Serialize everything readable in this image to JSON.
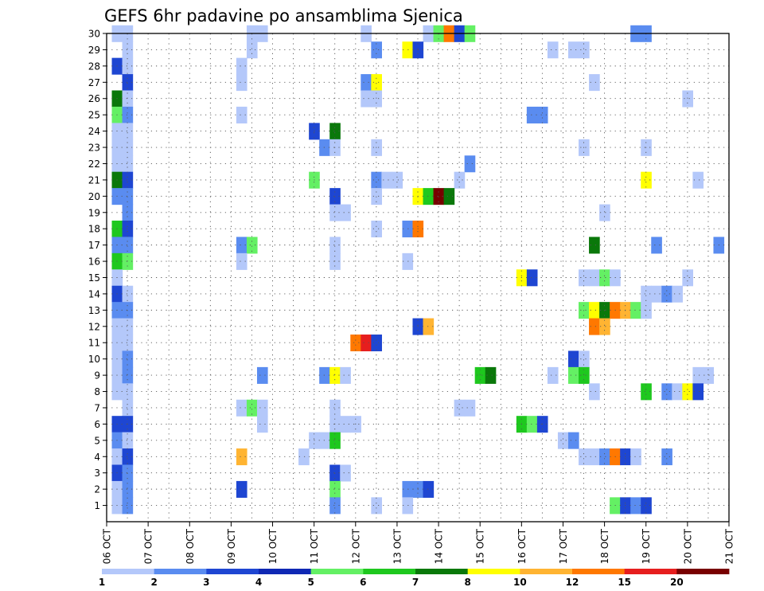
{
  "chart_data": {
    "type": "heatmap",
    "title": "GEFS 6hr padavine po ansamblima Sjenica",
    "xlabel": "",
    "ylabel": "",
    "x_ticks": [
      "06 OCT",
      "07 OCT",
      "08 OCT",
      "09 OCT",
      "10 OCT",
      "11 OCT",
      "12 OCT",
      "13 OCT",
      "14 OCT",
      "15 OCT",
      "16 OCT",
      "17 OCT",
      "18 OCT",
      "19 OCT",
      "20 OCT",
      "21 OCT"
    ],
    "x_range_days": [
      0,
      15
    ],
    "y_ticks": [
      "1",
      "2",
      "3",
      "4",
      "5",
      "6",
      "7",
      "8",
      "9",
      "10",
      "11",
      "12",
      "13",
      "14",
      "15",
      "16",
      "17",
      "18",
      "19",
      "20",
      "21",
      "22",
      "23",
      "24",
      "25",
      "26",
      "27",
      "28",
      "29",
      "30"
    ],
    "y_range": [
      0,
      30
    ],
    "grid": true,
    "colorbar": {
      "levels": [
        "1",
        "2",
        "3",
        "4",
        "5",
        "6",
        "7",
        "8",
        "10",
        "12",
        "15",
        "20"
      ],
      "colors": [
        "#b4c8fa",
        "#5a8cf0",
        "#1e46d2",
        "#0f28b4",
        "#64f064",
        "#1ec81e",
        "#0a780a",
        "#ffff00",
        "#ffb432",
        "#ff7800",
        "#e61e1e",
        "#780000"
      ]
    },
    "cells": [
      {
        "x": 0.25,
        "y": 30,
        "c": 0
      },
      {
        "x": 0.5,
        "y": 30,
        "c": 0
      },
      {
        "x": 3.5,
        "y": 30,
        "c": 0
      },
      {
        "x": 3.75,
        "y": 30,
        "c": 0
      },
      {
        "x": 6.25,
        "y": 30,
        "c": 0
      },
      {
        "x": 7.75,
        "y": 30,
        "c": 0
      },
      {
        "x": 8,
        "y": 30,
        "c": 4
      },
      {
        "x": 8.25,
        "y": 30,
        "c": 9
      },
      {
        "x": 8.5,
        "y": 30,
        "c": 2
      },
      {
        "x": 8.75,
        "y": 30,
        "c": 4
      },
      {
        "x": 12.75,
        "y": 30,
        "c": 1
      },
      {
        "x": 13,
        "y": 30,
        "c": 1
      },
      {
        "x": 0.5,
        "y": 29,
        "c": 0
      },
      {
        "x": 3.5,
        "y": 29,
        "c": 0
      },
      {
        "x": 6.5,
        "y": 29,
        "c": 1
      },
      {
        "x": 7.25,
        "y": 29,
        "c": 7
      },
      {
        "x": 7.5,
        "y": 29,
        "c": 2
      },
      {
        "x": 10.75,
        "y": 29,
        "c": 0
      },
      {
        "x": 11.25,
        "y": 29,
        "c": 0
      },
      {
        "x": 11.5,
        "y": 29,
        "c": 0
      },
      {
        "x": 0.25,
        "y": 28,
        "c": 2
      },
      {
        "x": 0.5,
        "y": 28,
        "c": 0
      },
      {
        "x": 3.25,
        "y": 28,
        "c": 0
      },
      {
        "x": 0.5,
        "y": 27,
        "c": 2
      },
      {
        "x": 3.25,
        "y": 27,
        "c": 0
      },
      {
        "x": 6.25,
        "y": 27,
        "c": 1
      },
      {
        "x": 6.5,
        "y": 27,
        "c": 7
      },
      {
        "x": 11.75,
        "y": 27,
        "c": 0
      },
      {
        "x": 0.25,
        "y": 26,
        "c": 6
      },
      {
        "x": 0.5,
        "y": 26,
        "c": 0
      },
      {
        "x": 6.25,
        "y": 26,
        "c": 0
      },
      {
        "x": 6.5,
        "y": 26,
        "c": 0
      },
      {
        "x": 14,
        "y": 26,
        "c": 0
      },
      {
        "x": 0.25,
        "y": 25,
        "c": 4
      },
      {
        "x": 0.5,
        "y": 25,
        "c": 1
      },
      {
        "x": 3.25,
        "y": 25,
        "c": 0
      },
      {
        "x": 10.25,
        "y": 25,
        "c": 1
      },
      {
        "x": 10.5,
        "y": 25,
        "c": 1
      },
      {
        "x": 0.25,
        "y": 24,
        "c": 0
      },
      {
        "x": 0.5,
        "y": 24,
        "c": 0
      },
      {
        "x": 5,
        "y": 24,
        "c": 2
      },
      {
        "x": 5.5,
        "y": 24,
        "c": 6
      },
      {
        "x": 0.25,
        "y": 23,
        "c": 0
      },
      {
        "x": 0.5,
        "y": 23,
        "c": 0
      },
      {
        "x": 5.25,
        "y": 23,
        "c": 1
      },
      {
        "x": 5.5,
        "y": 23,
        "c": 0
      },
      {
        "x": 6.5,
        "y": 23,
        "c": 0
      },
      {
        "x": 11.5,
        "y": 23,
        "c": 0
      },
      {
        "x": 13,
        "y": 23,
        "c": 0
      },
      {
        "x": 0.25,
        "y": 22,
        "c": 0
      },
      {
        "x": 0.5,
        "y": 22,
        "c": 0
      },
      {
        "x": 8.75,
        "y": 22,
        "c": 1
      },
      {
        "x": 0.25,
        "y": 21,
        "c": 6
      },
      {
        "x": 0.5,
        "y": 21,
        "c": 2
      },
      {
        "x": 5,
        "y": 21,
        "c": 4
      },
      {
        "x": 6.5,
        "y": 21,
        "c": 1
      },
      {
        "x": 6.75,
        "y": 21,
        "c": 0
      },
      {
        "x": 7,
        "y": 21,
        "c": 0
      },
      {
        "x": 8.5,
        "y": 21,
        "c": 0
      },
      {
        "x": 13,
        "y": 21,
        "c": 7
      },
      {
        "x": 14.25,
        "y": 21,
        "c": 0
      },
      {
        "x": 0.25,
        "y": 20,
        "c": 1
      },
      {
        "x": 0.5,
        "y": 20,
        "c": 1
      },
      {
        "x": 5.5,
        "y": 20,
        "c": 2
      },
      {
        "x": 6.5,
        "y": 20,
        "c": 0
      },
      {
        "x": 7.5,
        "y": 20,
        "c": 7
      },
      {
        "x": 7.75,
        "y": 20,
        "c": 5
      },
      {
        "x": 8,
        "y": 20,
        "c": 11
      },
      {
        "x": 8.25,
        "y": 20,
        "c": 6
      },
      {
        "x": 0.5,
        "y": 19,
        "c": 1
      },
      {
        "x": 5.5,
        "y": 19,
        "c": 0
      },
      {
        "x": 5.75,
        "y": 19,
        "c": 0
      },
      {
        "x": 12,
        "y": 19,
        "c": 0
      },
      {
        "x": 0.25,
        "y": 18,
        "c": 5
      },
      {
        "x": 0.5,
        "y": 18,
        "c": 2
      },
      {
        "x": 6.5,
        "y": 18,
        "c": 0
      },
      {
        "x": 7.25,
        "y": 18,
        "c": 1
      },
      {
        "x": 7.5,
        "y": 18,
        "c": 9
      },
      {
        "x": 0.25,
        "y": 17,
        "c": 1
      },
      {
        "x": 0.5,
        "y": 17,
        "c": 1
      },
      {
        "x": 3.25,
        "y": 17,
        "c": 1
      },
      {
        "x": 3.5,
        "y": 17,
        "c": 4
      },
      {
        "x": 5.5,
        "y": 17,
        "c": 0
      },
      {
        "x": 11.75,
        "y": 17,
        "c": 6
      },
      {
        "x": 13.25,
        "y": 17,
        "c": 1
      },
      {
        "x": 14.75,
        "y": 17,
        "c": 1
      },
      {
        "x": 0.25,
        "y": 16,
        "c": 5
      },
      {
        "x": 0.5,
        "y": 16,
        "c": 4
      },
      {
        "x": 3.25,
        "y": 16,
        "c": 0
      },
      {
        "x": 5.5,
        "y": 16,
        "c": 0
      },
      {
        "x": 7.25,
        "y": 16,
        "c": 0
      },
      {
        "x": 0.25,
        "y": 15,
        "c": 0
      },
      {
        "x": 10,
        "y": 15,
        "c": 7
      },
      {
        "x": 10.25,
        "y": 15,
        "c": 2
      },
      {
        "x": 11.5,
        "y": 15,
        "c": 0
      },
      {
        "x": 11.75,
        "y": 15,
        "c": 0
      },
      {
        "x": 12,
        "y": 15,
        "c": 4
      },
      {
        "x": 12.25,
        "y": 15,
        "c": 0
      },
      {
        "x": 14,
        "y": 15,
        "c": 0
      },
      {
        "x": 0.25,
        "y": 14,
        "c": 2
      },
      {
        "x": 0.5,
        "y": 14,
        "c": 0
      },
      {
        "x": 13,
        "y": 14,
        "c": 0
      },
      {
        "x": 13.25,
        "y": 14,
        "c": 0
      },
      {
        "x": 13.5,
        "y": 14,
        "c": 1
      },
      {
        "x": 13.75,
        "y": 14,
        "c": 0
      },
      {
        "x": 0.25,
        "y": 13,
        "c": 1
      },
      {
        "x": 0.5,
        "y": 13,
        "c": 1
      },
      {
        "x": 11.5,
        "y": 13,
        "c": 4
      },
      {
        "x": 11.75,
        "y": 13,
        "c": 7
      },
      {
        "x": 12,
        "y": 13,
        "c": 6
      },
      {
        "x": 12.25,
        "y": 13,
        "c": 9
      },
      {
        "x": 12.5,
        "y": 13,
        "c": 8
      },
      {
        "x": 12.75,
        "y": 13,
        "c": 4
      },
      {
        "x": 13,
        "y": 13,
        "c": 0
      },
      {
        "x": 0.25,
        "y": 12,
        "c": 0
      },
      {
        "x": 0.5,
        "y": 12,
        "c": 0
      },
      {
        "x": 7.5,
        "y": 12,
        "c": 2
      },
      {
        "x": 7.75,
        "y": 12,
        "c": 8
      },
      {
        "x": 11.75,
        "y": 12,
        "c": 9
      },
      {
        "x": 12,
        "y": 12,
        "c": 8
      },
      {
        "x": 0.25,
        "y": 11,
        "c": 0
      },
      {
        "x": 0.5,
        "y": 11,
        "c": 0
      },
      {
        "x": 6,
        "y": 11,
        "c": 9
      },
      {
        "x": 6.25,
        "y": 11,
        "c": 10
      },
      {
        "x": 6.5,
        "y": 11,
        "c": 2
      },
      {
        "x": 0.25,
        "y": 10,
        "c": 0
      },
      {
        "x": 0.5,
        "y": 10,
        "c": 1
      },
      {
        "x": 11.25,
        "y": 10,
        "c": 2
      },
      {
        "x": 11.5,
        "y": 10,
        "c": 0
      },
      {
        "x": 0.25,
        "y": 9,
        "c": 0
      },
      {
        "x": 0.5,
        "y": 9,
        "c": 1
      },
      {
        "x": 3.75,
        "y": 9,
        "c": 1
      },
      {
        "x": 5.25,
        "y": 9,
        "c": 1
      },
      {
        "x": 5.5,
        "y": 9,
        "c": 7
      },
      {
        "x": 5.75,
        "y": 9,
        "c": 0
      },
      {
        "x": 9,
        "y": 9,
        "c": 5
      },
      {
        "x": 9.25,
        "y": 9,
        "c": 6
      },
      {
        "x": 10.75,
        "y": 9,
        "c": 0
      },
      {
        "x": 11.25,
        "y": 9,
        "c": 4
      },
      {
        "x": 11.5,
        "y": 9,
        "c": 5
      },
      {
        "x": 14.25,
        "y": 9,
        "c": 0
      },
      {
        "x": 14.5,
        "y": 9,
        "c": 0
      },
      {
        "x": 0.25,
        "y": 8,
        "c": 0
      },
      {
        "x": 0.5,
        "y": 8,
        "c": 0
      },
      {
        "x": 11.75,
        "y": 8,
        "c": 0
      },
      {
        "x": 13,
        "y": 8,
        "c": 5
      },
      {
        "x": 13.5,
        "y": 8,
        "c": 1
      },
      {
        "x": 13.75,
        "y": 8,
        "c": 0
      },
      {
        "x": 14,
        "y": 8,
        "c": 7
      },
      {
        "x": 14.25,
        "y": 8,
        "c": 2
      },
      {
        "x": 0.5,
        "y": 7,
        "c": 0
      },
      {
        "x": 3.25,
        "y": 7,
        "c": 0
      },
      {
        "x": 3.5,
        "y": 7,
        "c": 4
      },
      {
        "x": 3.75,
        "y": 7,
        "c": 0
      },
      {
        "x": 5.5,
        "y": 7,
        "c": 0
      },
      {
        "x": 8.5,
        "y": 7,
        "c": 0
      },
      {
        "x": 8.75,
        "y": 7,
        "c": 0
      },
      {
        "x": 0.25,
        "y": 6,
        "c": 2
      },
      {
        "x": 0.5,
        "y": 6,
        "c": 2
      },
      {
        "x": 3.75,
        "y": 6,
        "c": 0
      },
      {
        "x": 5.5,
        "y": 6,
        "c": 0
      },
      {
        "x": 5.75,
        "y": 6,
        "c": 0
      },
      {
        "x": 6,
        "y": 6,
        "c": 0
      },
      {
        "x": 10,
        "y": 6,
        "c": 5
      },
      {
        "x": 10.25,
        "y": 6,
        "c": 4
      },
      {
        "x": 10.5,
        "y": 6,
        "c": 2
      },
      {
        "x": 0.25,
        "y": 5,
        "c": 1
      },
      {
        "x": 0.5,
        "y": 5,
        "c": 0
      },
      {
        "x": 5,
        "y": 5,
        "c": 0
      },
      {
        "x": 5.25,
        "y": 5,
        "c": 0
      },
      {
        "x": 5.5,
        "y": 5,
        "c": 5
      },
      {
        "x": 11,
        "y": 5,
        "c": 0
      },
      {
        "x": 11.25,
        "y": 5,
        "c": 1
      },
      {
        "x": 0.25,
        "y": 4,
        "c": 0
      },
      {
        "x": 0.5,
        "y": 4,
        "c": 2
      },
      {
        "x": 3.25,
        "y": 4,
        "c": 8
      },
      {
        "x": 4.75,
        "y": 4,
        "c": 0
      },
      {
        "x": 11.5,
        "y": 4,
        "c": 0
      },
      {
        "x": 11.75,
        "y": 4,
        "c": 0
      },
      {
        "x": 12,
        "y": 4,
        "c": 1
      },
      {
        "x": 12.25,
        "y": 4,
        "c": 9
      },
      {
        "x": 12.5,
        "y": 4,
        "c": 2
      },
      {
        "x": 12.75,
        "y": 4,
        "c": 0
      },
      {
        "x": 13.5,
        "y": 4,
        "c": 1
      },
      {
        "x": 0.25,
        "y": 3,
        "c": 2
      },
      {
        "x": 0.5,
        "y": 3,
        "c": 1
      },
      {
        "x": 5.5,
        "y": 3,
        "c": 2
      },
      {
        "x": 5.75,
        "y": 3,
        "c": 0
      },
      {
        "x": 0.25,
        "y": 2,
        "c": 0
      },
      {
        "x": 0.5,
        "y": 2,
        "c": 1
      },
      {
        "x": 3.25,
        "y": 2,
        "c": 2
      },
      {
        "x": 5.5,
        "y": 2,
        "c": 4
      },
      {
        "x": 7.25,
        "y": 2,
        "c": 1
      },
      {
        "x": 7.5,
        "y": 2,
        "c": 1
      },
      {
        "x": 7.75,
        "y": 2,
        "c": 2
      },
      {
        "x": 0.25,
        "y": 1,
        "c": 0
      },
      {
        "x": 0.5,
        "y": 1,
        "c": 1
      },
      {
        "x": 5.5,
        "y": 1,
        "c": 1
      },
      {
        "x": 6.5,
        "y": 1,
        "c": 0
      },
      {
        "x": 7.25,
        "y": 1,
        "c": 0
      },
      {
        "x": 12.25,
        "y": 1,
        "c": 4
      },
      {
        "x": 12.5,
        "y": 1,
        "c": 2
      },
      {
        "x": 12.75,
        "y": 1,
        "c": 1
      },
      {
        "x": 13,
        "y": 1,
        "c": 2
      }
    ]
  }
}
